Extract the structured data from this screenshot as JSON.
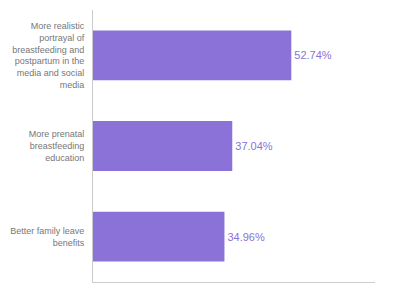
{
  "chart_data": {
    "type": "bar",
    "orientation": "horizontal",
    "categories": [
      "Better family leave\nbenefits",
      "More prenatal\nbreastfeeding\neducation",
      "More realistic\nportrayal of\nbreastfeeding and\npostpartum in the\nmedia and social\nmedia"
    ],
    "values": [
      34.96,
      37.04,
      52.74
    ],
    "value_labels": [
      "34.96%",
      "37.04%",
      "52.74%"
    ],
    "data_labels": true,
    "color": "#8B72D8",
    "xlim": [
      0,
      75
    ],
    "grid": false,
    "tick_labels": "y"
  }
}
